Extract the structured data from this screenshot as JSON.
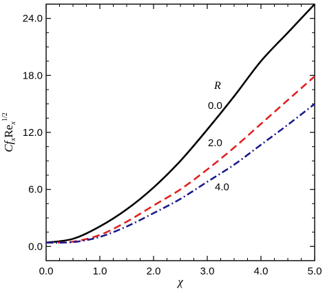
{
  "chart_data": {
    "type": "line",
    "xlabel": "χ",
    "ylabel": "Cf_x Re_x^1/2",
    "xlim": [
      0,
      5
    ],
    "ylim": [
      -1.5,
      25.5
    ],
    "xticks": [
      "0.0",
      "1.0",
      "2.0",
      "3.0",
      "4.0",
      "5.0"
    ],
    "yticks": [
      "0.0",
      "6.0",
      "12.0",
      "18.0",
      "24.0"
    ],
    "grid": false,
    "annotations": {
      "legend_title": "R",
      "labels": [
        "0.0",
        "2.0",
        "4.0"
      ]
    },
    "x": [
      0,
      0.5,
      1.0,
      1.5,
      2.0,
      2.5,
      3.0,
      3.5,
      4.0,
      4.5,
      5.0
    ],
    "series": [
      {
        "name": "0.0",
        "color": "#000000",
        "style": "solid",
        "values": [
          0.4,
          0.8,
          2.1,
          3.9,
          6.2,
          9.0,
          12.3,
          15.8,
          19.5,
          22.5,
          25.5
        ]
      },
      {
        "name": "2.0",
        "color": "#e02020",
        "style": "dashed",
        "values": [
          0.4,
          0.5,
          1.2,
          2.6,
          4.3,
          6.0,
          8.1,
          10.4,
          12.9,
          15.4,
          17.9
        ]
      },
      {
        "name": "4.0",
        "color": "#1a1a8c",
        "style": "dashdot",
        "values": [
          0.4,
          0.45,
          1.0,
          2.1,
          3.5,
          5.0,
          6.8,
          8.6,
          10.7,
          12.8,
          15.0
        ]
      }
    ]
  }
}
